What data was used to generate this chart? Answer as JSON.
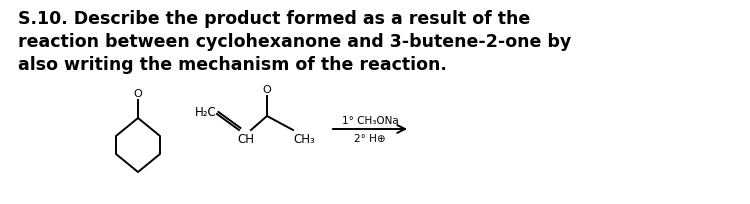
{
  "title_line1": "S.10. Describe the product formed as a result of the",
  "title_line2": "reaction between cyclohexanone and 3-butene-2-one by",
  "title_line3": "also writing the mechanism of the reaction.",
  "title_fontsize": 12.5,
  "bg_color": "#ffffff",
  "text_color": "#000000"
}
